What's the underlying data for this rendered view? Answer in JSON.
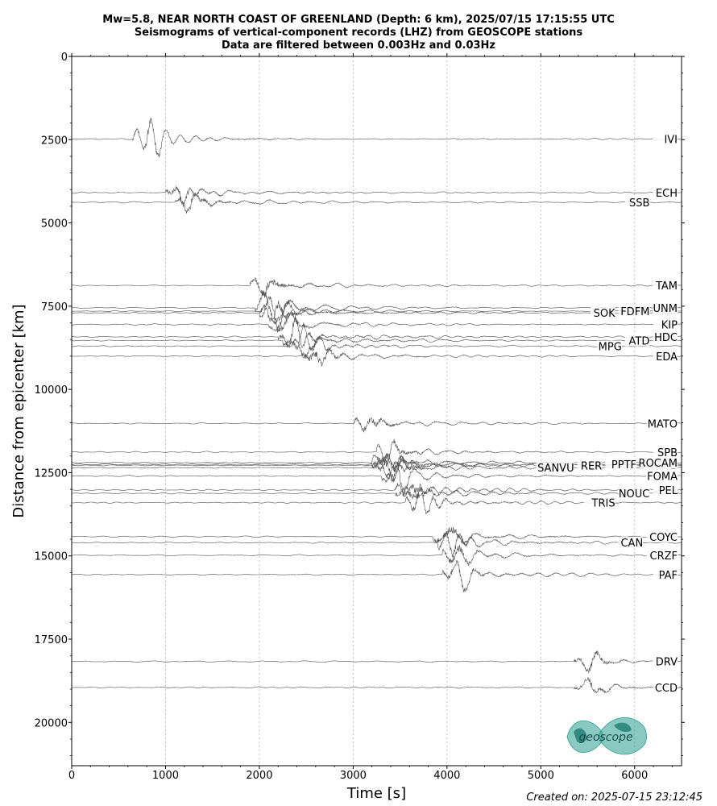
{
  "title_lines": [
    "Mw=5.8, NEAR NORTH COAST OF GREENLAND (Depth: 6 km), 2025/07/15 17:15:55 UTC",
    "Seismograms of vertical-component records (LHZ) from GEOSCOPE stations",
    "Data are filtered between 0.003Hz and 0.03Hz"
  ],
  "created": "Created on: 2025-07-15 23:12:45",
  "logo_text": "geoscope",
  "colors": {
    "trace": "#555555",
    "grid": "#b0b0b0",
    "axis": "#000000",
    "logo": "#2a9d8f"
  },
  "chart_data": {
    "type": "line",
    "title": "Mw=5.8, NEAR NORTH COAST OF GREENLAND (Depth: 6 km), 2025/07/15 17:15:55 UTC",
    "xlabel": "Time [s]",
    "ylabel": "Distance from epicenter [km]",
    "xlim": [
      0,
      6500
    ],
    "ylim": [
      0,
      21300
    ],
    "y_inverted": true,
    "xticks": [
      0,
      1000,
      2000,
      3000,
      4000,
      5000,
      6000
    ],
    "yticks": [
      0,
      2500,
      5000,
      7500,
      10000,
      12500,
      15000,
      17500,
      20000
    ],
    "xgrid": "dotted-vertical",
    "legend": "none",
    "stations": [
      {
        "name": "IVI",
        "distance": 2480,
        "arrival": 800,
        "amp": 1.0
      },
      {
        "name": "ECH",
        "distance": 4090,
        "arrival": 1150,
        "amp": 0.8
      },
      {
        "name": "SSB",
        "distance": 4380,
        "arrival": 1250,
        "amp": 0.9
      },
      {
        "name": "TAM",
        "distance": 6880,
        "arrival": 2050,
        "amp": 1.0
      },
      {
        "name": "UNM",
        "distance": 7550,
        "arrival": 2100,
        "amp": 1.0
      },
      {
        "name": "FDFM",
        "distance": 7650,
        "arrival": 2150,
        "amp": 1.0
      },
      {
        "name": "SOK",
        "distance": 7700,
        "arrival": 2150,
        "amp": 1.0
      },
      {
        "name": "KIP",
        "distance": 8050,
        "arrival": 2250,
        "amp": 0.9
      },
      {
        "name": "HDC",
        "distance": 8420,
        "arrival": 2350,
        "amp": 1.0
      },
      {
        "name": "ATD",
        "distance": 8530,
        "arrival": 2400,
        "amp": 1.0
      },
      {
        "name": "MPG",
        "distance": 8700,
        "arrival": 2500,
        "amp": 0.8
      },
      {
        "name": "EDA",
        "distance": 9000,
        "arrival": 2600,
        "amp": 1.0
      },
      {
        "name": "MATO",
        "distance": 11020,
        "arrival": 3150,
        "amp": 0.9
      },
      {
        "name": "SPB",
        "distance": 11880,
        "arrival": 3400,
        "amp": 0.9
      },
      {
        "name": "ROCAM",
        "distance": 12200,
        "arrival": 3350,
        "amp": 1.0
      },
      {
        "name": "PPTF",
        "distance": 12250,
        "arrival": 3350,
        "amp": 1.0
      },
      {
        "name": "RER",
        "distance": 12280,
        "arrival": 3350,
        "amp": 1.0
      },
      {
        "name": "SANVU",
        "distance": 12350,
        "arrival": 3400,
        "amp": 1.0
      },
      {
        "name": "FOMA",
        "distance": 12600,
        "arrival": 3450,
        "amp": 0.9
      },
      {
        "name": "PEL",
        "distance": 13020,
        "arrival": 3600,
        "amp": 1.0
      },
      {
        "name": "NOUC",
        "distance": 13120,
        "arrival": 3600,
        "amp": 1.0
      },
      {
        "name": "TRIS",
        "distance": 13400,
        "arrival": 3700,
        "amp": 1.0
      },
      {
        "name": "COYC",
        "distance": 14420,
        "arrival": 4000,
        "amp": 1.0
      },
      {
        "name": "CAN",
        "distance": 14600,
        "arrival": 4050,
        "amp": 1.0
      },
      {
        "name": "CRZF",
        "distance": 14980,
        "arrival": 4100,
        "amp": 0.9
      },
      {
        "name": "PAF",
        "distance": 15560,
        "arrival": 4100,
        "amp": 1.0
      },
      {
        "name": "DRV",
        "distance": 18170,
        "arrival": 5500,
        "amp": 0.8
      },
      {
        "name": "CCD",
        "distance": 18950,
        "arrival": 5500,
        "amp": 0.7
      }
    ]
  }
}
